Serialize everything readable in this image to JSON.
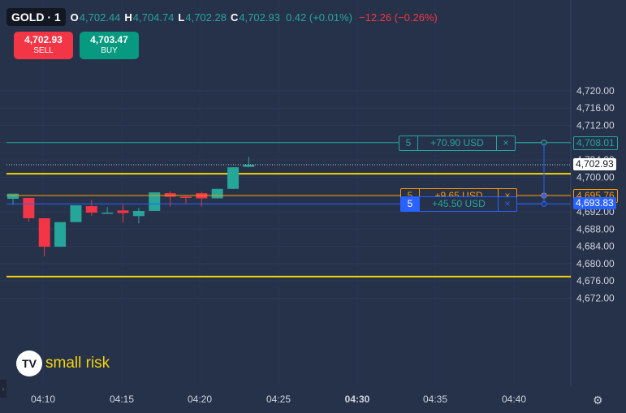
{
  "header": {
    "symbol": "GOLD · 1",
    "open_label": "O",
    "open": "4,702.44",
    "high_label": "H",
    "high": "4,704.74",
    "low_label": "L",
    "low": "4,702.28",
    "close_label": "C",
    "close": "4,702.93",
    "change_up": "0.42 (+0.01%)",
    "change_down": "−12.26 (−0.26%)"
  },
  "trade": {
    "sell_price": "4,702.93",
    "sell_label": "SELL",
    "buy_price": "4,703.47",
    "buy_label": "BUY"
  },
  "orders": [
    {
      "qty": "5",
      "pl": "+70.90 USD",
      "close": "×",
      "price": 4708.01,
      "price_label": "4,708.01",
      "color": "#26a69a",
      "box_x": 491
    },
    {
      "qty": "5",
      "pl": "+9.65 USD",
      "close": "×",
      "price": 4695.76,
      "price_label": "4,695.76",
      "color": "#ff9800",
      "box_x": 493
    },
    {
      "qty": "5",
      "pl": "+45.50 USD",
      "close": "×",
      "price": 4693.83,
      "price_label": "4,693.83",
      "color": "#2962ff",
      "box_x": 493
    }
  ],
  "current_price_label": "4,702.93",
  "logo": {
    "badge": "TV",
    "text": "small risk"
  },
  "settings_icon": "⚙",
  "colors": {
    "up": "#26a69a",
    "down": "#f23645",
    "hline": "#f5d40a",
    "background": "#26314a"
  },
  "chart_data": {
    "type": "candlestick",
    "y_ticks": [
      4720,
      4716,
      4712,
      4708,
      4704,
      4700,
      4696,
      4692,
      4688,
      4684,
      4680,
      4676,
      4672
    ],
    "y_tick_labels": [
      "4,720.00",
      "4,716.00",
      "4,712.00",
      "4,708.00",
      "4,704.00",
      "4,700.00",
      "4,696.00",
      "4,692.00",
      "4,688.00",
      "4,684.00",
      "4,680.00",
      "4,676.00",
      "4,672.00"
    ],
    "x_ticks": [
      "04:10",
      "04:15",
      "04:20",
      "04:25",
      "04:30",
      "04:35",
      "04:40"
    ],
    "x_tick_bold": "04:30",
    "horizontal_lines": [
      4700.8,
      4677.0
    ],
    "candles": [
      {
        "o": 4695.0,
        "h": 4696.2,
        "l": 4693.6,
        "c": 4696.2
      },
      {
        "o": 4695.2,
        "h": 4695.2,
        "l": 4689.7,
        "c": 4690.5
      },
      {
        "o": 4690.5,
        "h": 4690.5,
        "l": 4681.7,
        "c": 4683.9
      },
      {
        "o": 4683.9,
        "h": 4689.6,
        "l": 4683.9,
        "c": 4689.6
      },
      {
        "o": 4689.6,
        "h": 4693.5,
        "l": 4689.6,
        "c": 4693.5
      },
      {
        "o": 4693.3,
        "h": 4694.7,
        "l": 4691.1,
        "c": 4691.8
      },
      {
        "o": 4691.8,
        "h": 4693.1,
        "l": 4691.8,
        "c": 4691.8
      },
      {
        "o": 4692.3,
        "h": 4693.6,
        "l": 4689.5,
        "c": 4691.7
      },
      {
        "o": 4691.0,
        "h": 4692.9,
        "l": 4689.3,
        "c": 4692.2
      },
      {
        "o": 4692.2,
        "h": 4696.5,
        "l": 4692.2,
        "c": 4696.5
      },
      {
        "o": 4696.3,
        "h": 4696.7,
        "l": 4693.2,
        "c": 4695.5
      },
      {
        "o": 4695.5,
        "h": 4695.6,
        "l": 4694.0,
        "c": 4695.2
      },
      {
        "o": 4696.3,
        "h": 4696.6,
        "l": 4693.2,
        "c": 4695.1
      },
      {
        "o": 4695.1,
        "h": 4697.3,
        "l": 4695.1,
        "c": 4697.3
      },
      {
        "o": 4697.3,
        "h": 4702.3,
        "l": 4697.3,
        "c": 4702.3
      },
      {
        "o": 4702.4,
        "h": 4704.7,
        "l": 4702.3,
        "c": 4702.9
      }
    ]
  }
}
